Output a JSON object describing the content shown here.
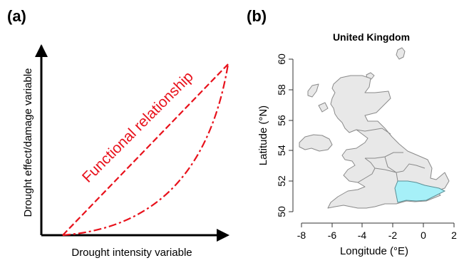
{
  "panel_a": {
    "label": "(a)",
    "y_axis_label": "Drought effect/damage variable",
    "x_axis_label": "Drought intensity variable",
    "relationship_label": "Functional relationship",
    "curve_color": "#e8111b"
  },
  "panel_b": {
    "label": "(b)",
    "title": "United Kingdom",
    "x_axis_label": "Longitude (°E)",
    "y_axis_label": "Latitude (°N)",
    "x_ticks": [
      "-8",
      "-6",
      "-4",
      "-2",
      "0",
      "2"
    ],
    "y_ticks": [
      "50",
      "52",
      "54",
      "56",
      "58",
      "60"
    ],
    "land_color": "#e8e8e8",
    "highlight_color": "#a6f0f8"
  }
}
